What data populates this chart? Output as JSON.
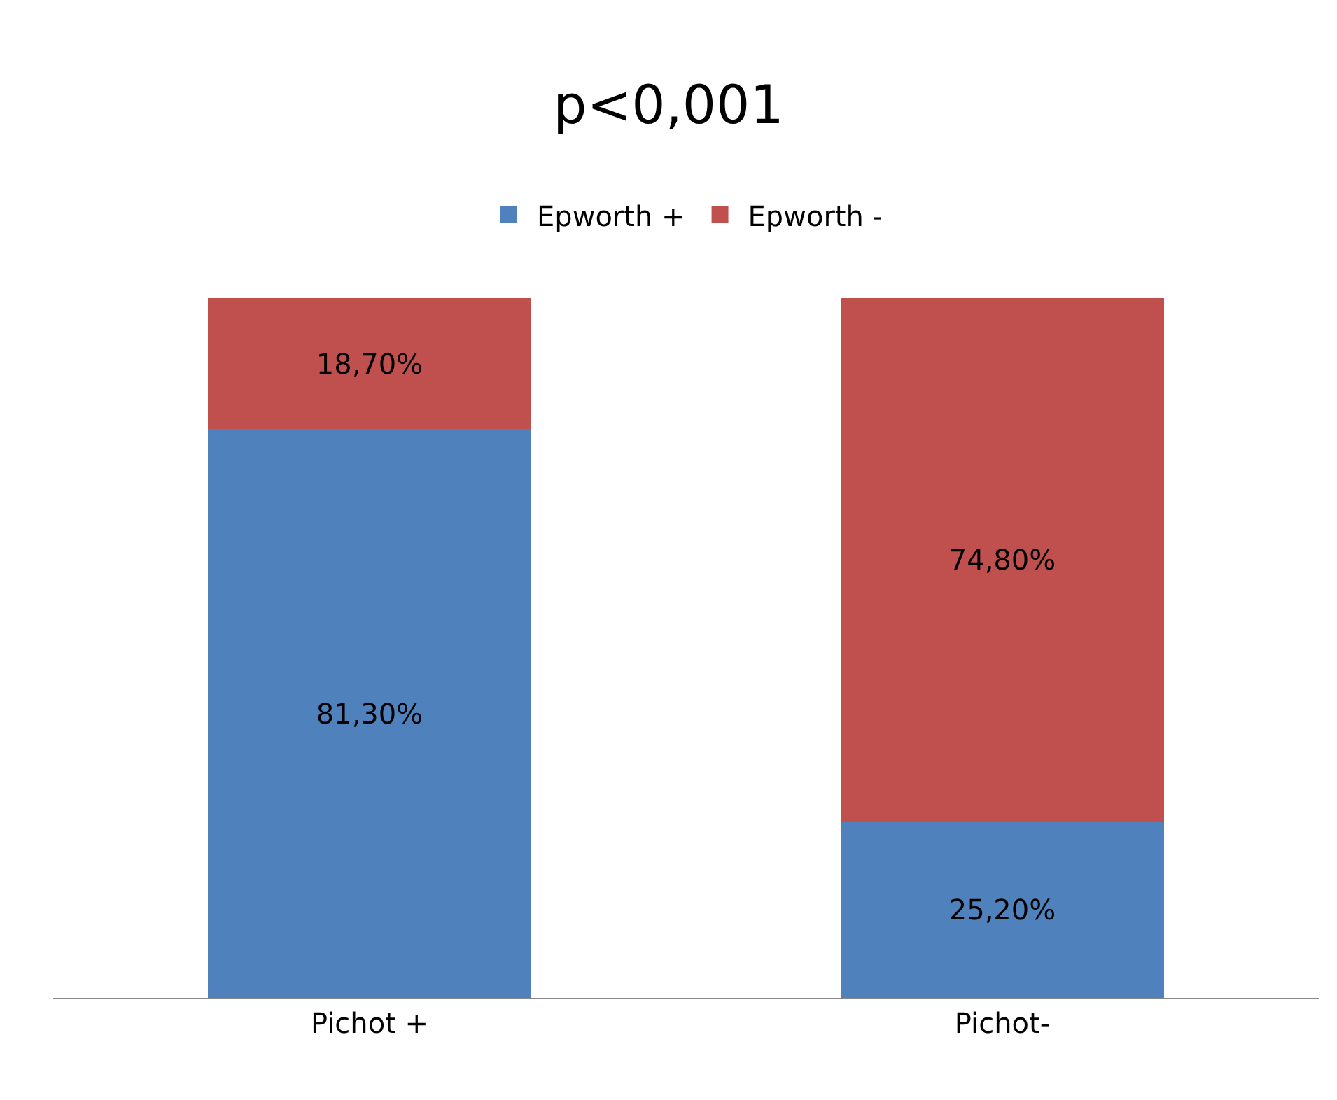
{
  "chart_data": {
    "type": "bar",
    "title": "p<0,001",
    "stacked": true,
    "legend": "top",
    "categories": [
      "Pichot +",
      "Pichot-"
    ],
    "series": [
      {
        "name": "Epworth +",
        "color": "#4f81bd",
        "values": [
          81.3,
          25.2
        ],
        "value_labels": [
          "81,30%",
          "25,20%"
        ]
      },
      {
        "name": "Epworth -",
        "color": "#c0504d",
        "values": [
          18.7,
          74.8
        ],
        "value_labels": [
          "18,70%",
          "74,80%"
        ]
      }
    ]
  }
}
